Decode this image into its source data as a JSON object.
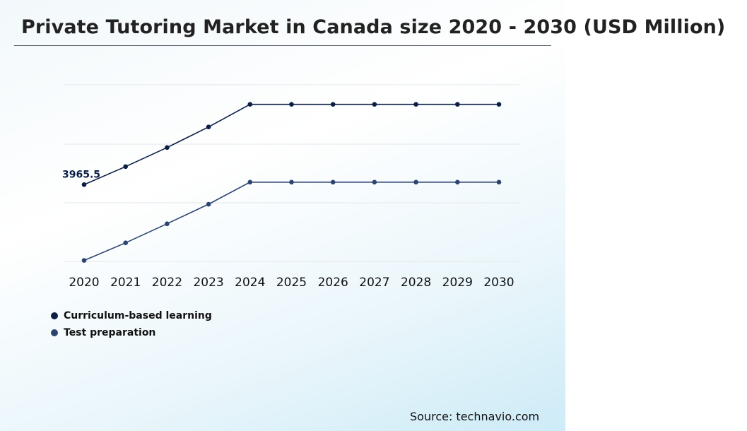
{
  "header": {
    "title": "Private Tutoring Market in Canada size 2020 - 2030 (USD Million)"
  },
  "footer": {
    "source": "Source: technavio.com"
  },
  "colors": {
    "series_1": "#0b1f45",
    "series_2": "#2d4470",
    "grid": "#e3e8ec"
  },
  "chart_data": {
    "type": "line",
    "title": "Private Tutoring Market in Canada size 2020 - 2030 (USD Million)",
    "xlabel": "",
    "ylabel": "",
    "categories": [
      "2020",
      "2021",
      "2022",
      "2023",
      "2024",
      "2025",
      "2026",
      "2027",
      "2028",
      "2029",
      "2030"
    ],
    "series": [
      {
        "name": "Curriculum-based learning",
        "values": [
          3965.5,
          4145,
          4335,
          4540,
          4765,
          4765,
          4765,
          4765,
          4765,
          4765,
          4765
        ]
      },
      {
        "name": "Test preparation",
        "values": [
          3210,
          3385,
          3575,
          3770,
          3990,
          3990,
          3990,
          3990,
          3990,
          3990,
          3990
        ]
      }
    ],
    "annotations": [
      {
        "series": 0,
        "index": 0,
        "text": "3965.5"
      }
    ],
    "ylim": [
      3200,
      4960
    ],
    "y_axis_visible": false,
    "grid": true,
    "legend": "bottom-left"
  }
}
